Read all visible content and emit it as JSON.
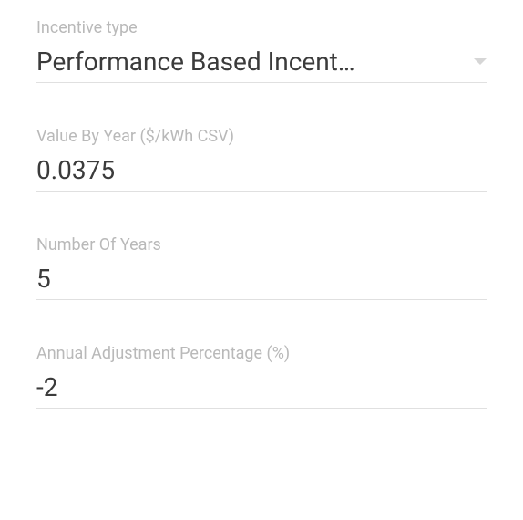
{
  "fields": {
    "incentive_type": {
      "label": "Incentive type",
      "value": "Performance Based Incent…"
    },
    "value_by_year": {
      "label": "Value By Year ($/kWh CSV)",
      "value": "0.0375"
    },
    "number_of_years": {
      "label": "Number Of Years",
      "value": "5"
    },
    "annual_adjustment": {
      "label": "Annual Adjustment Percentage (%)",
      "value": "-2"
    }
  },
  "colors": {
    "label_color": "#b9b9b9",
    "value_color": "#3b3b3b",
    "border_color": "#e0e0e0",
    "chevron_color": "#d6d6d6",
    "background": "#ffffff"
  },
  "typography": {
    "label_fontsize": 18,
    "value_fontsize": 28,
    "font_weight": 400
  }
}
